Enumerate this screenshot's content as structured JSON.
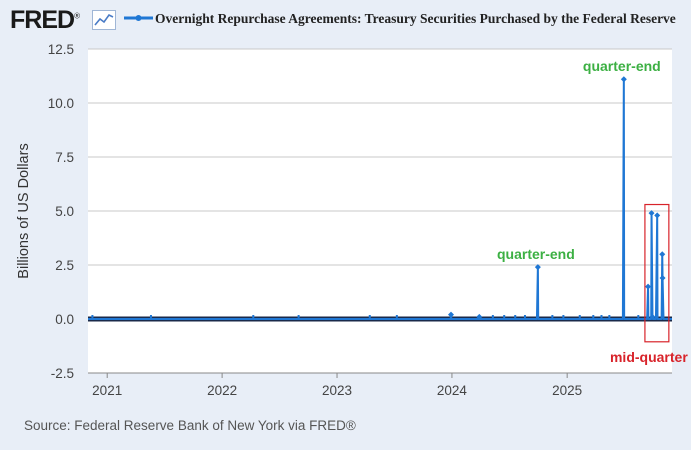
{
  "header": {
    "logo_text": "FRED",
    "logo_reg": "®"
  },
  "footer": {
    "source": "Source: Federal Reserve Bank of New York via FRED®"
  },
  "colors": {
    "series": "#1f77d4",
    "annotation_green": "#3cb043",
    "annotation_red": "#d8232a",
    "grid": "#c8c8c8",
    "background": "#e8eef7"
  },
  "chart_data": {
    "type": "line",
    "title": "Overnight Repurchase Agreements: Treasury Securities Purchased by the Federal Reserve",
    "ylabel": "Billions of US Dollars",
    "xlabel": "",
    "ylim": [
      -2.5,
      12.5
    ],
    "xlim": [
      "2020-11-01",
      "2025-11-30"
    ],
    "yticks": [
      -2.5,
      0.0,
      2.5,
      5.0,
      7.5,
      10.0,
      12.5
    ],
    "ytick_labels": [
      "-2.5",
      "0.0",
      "2.5",
      "5.0",
      "7.5",
      "10.0",
      "12.5"
    ],
    "xticks": [
      "2021-01-01",
      "2022-01-01",
      "2023-01-01",
      "2024-01-01",
      "2025-01-01"
    ],
    "xtick_labels": [
      "2021",
      "2022",
      "2023",
      "2024",
      "2025"
    ],
    "grid": "horizontal",
    "series": [
      {
        "name": "Overnight Repurchase Agreements: Treasury Securities Purchased by the Federal Reserve",
        "points": [
          [
            "2020-11-01",
            0.0
          ],
          [
            "2023-12-28",
            0.0
          ],
          [
            "2023-12-29",
            0.2
          ],
          [
            "2023-12-30",
            0.0
          ],
          [
            "2024-03-27",
            0.0
          ],
          [
            "2024-03-28",
            0.1
          ],
          [
            "2024-03-29",
            0.0
          ],
          [
            "2024-09-27",
            0.0
          ],
          [
            "2024-09-30",
            2.4
          ],
          [
            "2024-10-01",
            0.0
          ],
          [
            "2025-06-27",
            0.0
          ],
          [
            "2025-06-30",
            11.1
          ],
          [
            "2025-07-01",
            0.0
          ],
          [
            "2025-09-12",
            0.0
          ],
          [
            "2025-09-15",
            1.5
          ],
          [
            "2025-09-16",
            0.0
          ],
          [
            "2025-09-25",
            0.0
          ],
          [
            "2025-09-26",
            4.9
          ],
          [
            "2025-09-29",
            0.1
          ],
          [
            "2025-09-30",
            0.0
          ],
          [
            "2025-10-10",
            0.0
          ],
          [
            "2025-10-14",
            4.8
          ],
          [
            "2025-10-15",
            0.0
          ],
          [
            "2025-10-28",
            0.0
          ],
          [
            "2025-10-30",
            3.0
          ],
          [
            "2025-10-31",
            1.9
          ],
          [
            "2025-11-03",
            0.0
          ],
          [
            "2025-11-30",
            0.0
          ]
        ]
      }
    ],
    "small_markers": [
      "2020-11-15",
      "2021-05-20",
      "2022-04-10",
      "2022-09-01",
      "2023-04-15",
      "2023-07-10",
      "2024-05-10",
      "2024-06-15",
      "2024-07-20",
      "2024-08-20",
      "2024-11-15",
      "2024-12-20",
      "2025-02-10",
      "2025-03-25",
      "2025-04-20",
      "2025-05-15",
      "2025-08-15"
    ],
    "annotations": [
      {
        "text": "quarter-end",
        "x": "2025-06-30",
        "y": 11.1,
        "color": "green"
      },
      {
        "text": "quarter-end",
        "x": "2024-09-30",
        "y": 2.4,
        "color": "green"
      },
      {
        "text": "mid-quarter",
        "color": "red",
        "range": [
          "2025-09-05",
          "2025-11-20"
        ],
        "yrange": [
          -0.5,
          5.3
        ]
      }
    ]
  }
}
